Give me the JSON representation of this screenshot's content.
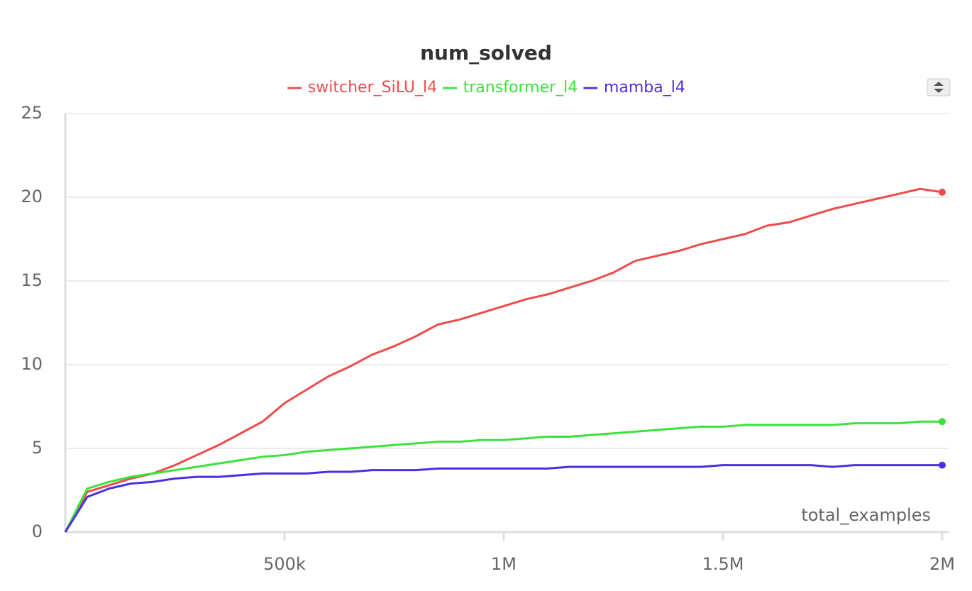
{
  "chart_data": {
    "type": "line",
    "title": "num_solved",
    "xlabel": "total_examples",
    "x": [
      0,
      50000,
      100000,
      150000,
      200000,
      250000,
      300000,
      350000,
      400000,
      450000,
      500000,
      550000,
      600000,
      650000,
      700000,
      750000,
      800000,
      850000,
      900000,
      950000,
      1000000,
      1050000,
      1100000,
      1150000,
      1200000,
      1250000,
      1300000,
      1350000,
      1400000,
      1450000,
      1500000,
      1550000,
      1600000,
      1650000,
      1700000,
      1750000,
      1800000,
      1850000,
      1900000,
      1950000,
      2000000
    ],
    "series": [
      {
        "name": "switcher_SiLU_l4",
        "color": "#ef4b4b",
        "values": [
          0,
          2.4,
          2.8,
          3.2,
          3.5,
          4.0,
          4.6,
          5.2,
          5.9,
          6.6,
          7.7,
          8.5,
          9.3,
          9.9,
          10.6,
          11.1,
          11.7,
          12.4,
          12.7,
          13.1,
          13.5,
          13.9,
          14.2,
          14.6,
          15.0,
          15.5,
          16.2,
          16.5,
          16.8,
          17.2,
          17.5,
          17.8,
          18.3,
          18.5,
          18.9,
          19.3,
          19.6,
          19.9,
          20.2,
          20.5,
          20.3
        ]
      },
      {
        "name": "transformer_l4",
        "color": "#3ce23c",
        "values": [
          0,
          2.6,
          3.0,
          3.3,
          3.5,
          3.7,
          3.9,
          4.1,
          4.3,
          4.5,
          4.6,
          4.8,
          4.9,
          5.0,
          5.1,
          5.2,
          5.3,
          5.4,
          5.4,
          5.5,
          5.5,
          5.6,
          5.7,
          5.7,
          5.8,
          5.9,
          6.0,
          6.1,
          6.2,
          6.3,
          6.3,
          6.4,
          6.4,
          6.4,
          6.4,
          6.4,
          6.5,
          6.5,
          6.5,
          6.6,
          6.6
        ]
      },
      {
        "name": "mamba_l4",
        "color": "#4a2fe0",
        "values": [
          0,
          2.1,
          2.6,
          2.9,
          3.0,
          3.2,
          3.3,
          3.3,
          3.4,
          3.5,
          3.5,
          3.5,
          3.6,
          3.6,
          3.7,
          3.7,
          3.7,
          3.8,
          3.8,
          3.8,
          3.8,
          3.8,
          3.8,
          3.9,
          3.9,
          3.9,
          3.9,
          3.9,
          3.9,
          3.9,
          4.0,
          4.0,
          4.0,
          4.0,
          4.0,
          3.9,
          4.0,
          4.0,
          4.0,
          4.0,
          4.0
        ]
      }
    ],
    "xlim": [
      0,
      2000000
    ],
    "xticks": [
      {
        "value": 500000,
        "label": "500k"
      },
      {
        "value": 1000000,
        "label": "1M"
      },
      {
        "value": 1500000,
        "label": "1.5M"
      },
      {
        "value": 2000000,
        "label": "2M"
      }
    ],
    "ylim": [
      0,
      25
    ],
    "yticks": [
      0,
      5,
      10,
      15,
      20,
      25
    ],
    "grid": true
  }
}
